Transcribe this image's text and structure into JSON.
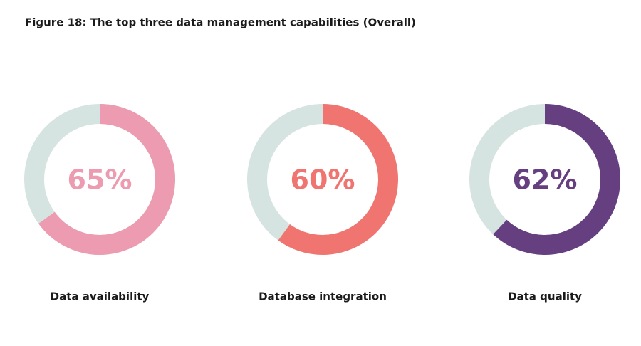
{
  "chart_data": {
    "type": "donut",
    "title": "Figure 18: The top three data management capabilities (Overall)",
    "categories": [
      "Data availability",
      "Database integration",
      "Data quality"
    ],
    "values": [
      65,
      60,
      62
    ],
    "value_labels": [
      "65%",
      "60%",
      "62%"
    ],
    "colors": [
      "#ec9bb0",
      "#f07570",
      "#663f80"
    ],
    "track_color": "#d5e4e1"
  }
}
